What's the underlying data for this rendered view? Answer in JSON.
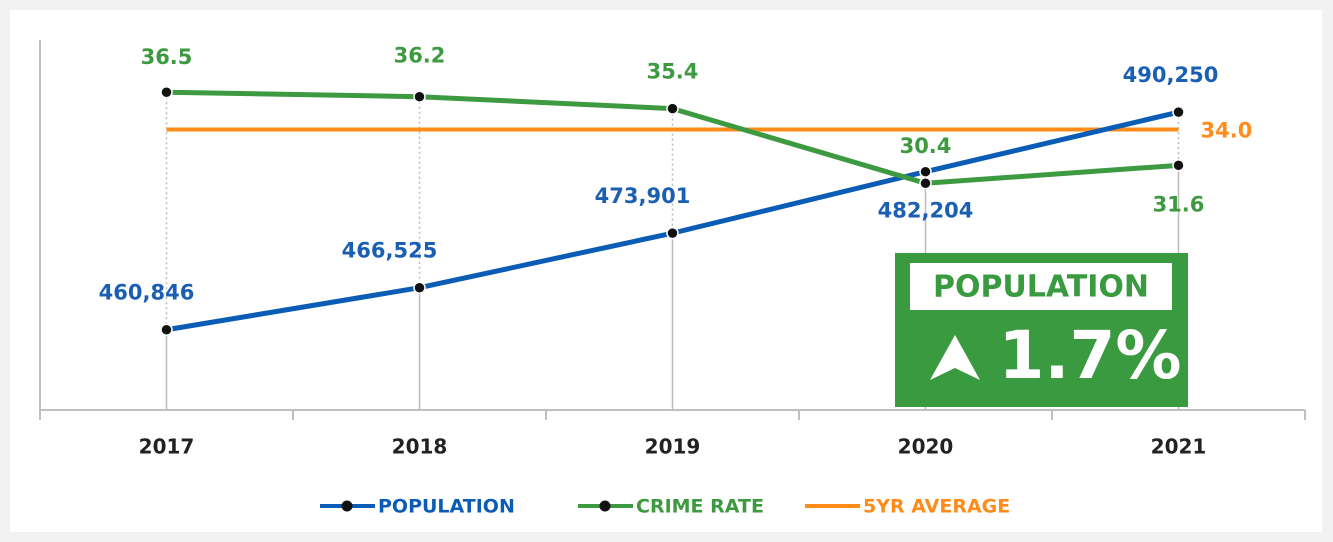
{
  "chart_data": {
    "type": "line",
    "categories": [
      "2017",
      "2018",
      "2019",
      "2020",
      "2021"
    ],
    "series": [
      {
        "name": "POPULATION",
        "color": "#0b5cb5",
        "values": [
          460846,
          466525,
          473901,
          482204,
          490250
        ],
        "value_labels": [
          "460,846",
          "466,525",
          "473,901",
          "482,204",
          "490,250"
        ]
      },
      {
        "name": "CRIME RATE",
        "color": "#3d9a40",
        "axis": "y2",
        "values": [
          36.5,
          36.2,
          35.4,
          30.4,
          31.6
        ]
      }
    ],
    "reference_line": {
      "name": "5YR AVERAGE",
      "color": "#ff8c1a",
      "axis": "y2",
      "value": 34,
      "value_label": "34.0"
    },
    "ylim": [
      450000,
      500000
    ],
    "y2lim": [
      15.2,
      40
    ],
    "annotation": {
      "title": "POPULATION",
      "text": "1.7%"
    }
  }
}
